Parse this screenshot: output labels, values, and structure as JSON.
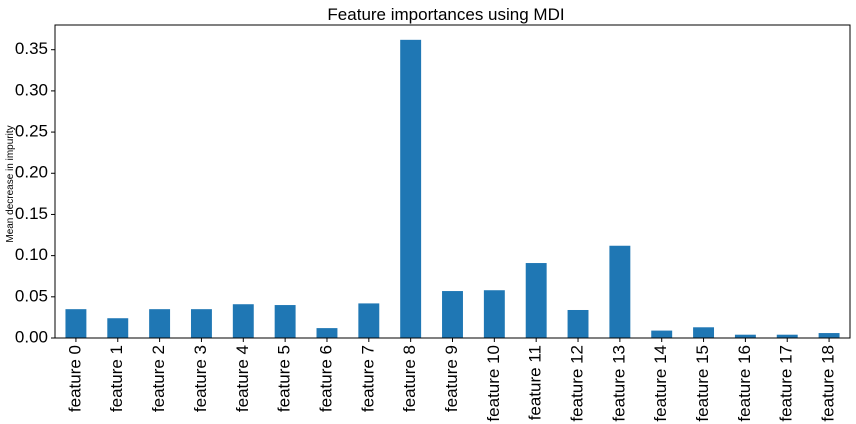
{
  "chart_data": {
    "type": "bar",
    "title": "Feature importances using MDI",
    "xlabel": "",
    "ylabel": "Mean decrease in impurity",
    "categories": [
      "feature 0",
      "feature 1",
      "feature 2",
      "feature 3",
      "feature 4",
      "feature 5",
      "feature 6",
      "feature 7",
      "feature 8",
      "feature 9",
      "feature 10",
      "feature 11",
      "feature 12",
      "feature 13",
      "feature 14",
      "feature 15",
      "feature 16",
      "feature 17",
      "feature 18"
    ],
    "values": [
      0.035,
      0.024,
      0.035,
      0.035,
      0.041,
      0.04,
      0.012,
      0.042,
      0.362,
      0.057,
      0.058,
      0.091,
      0.034,
      0.112,
      0.009,
      0.013,
      0.004,
      0.004,
      0.006
    ],
    "ylim": [
      0,
      0.38
    ],
    "yticks": [
      "0.00",
      "0.05",
      "0.10",
      "0.15",
      "0.20",
      "0.25",
      "0.30",
      "0.35"
    ],
    "bar_color": "#1f77b4",
    "grid": false,
    "legend": "none"
  }
}
